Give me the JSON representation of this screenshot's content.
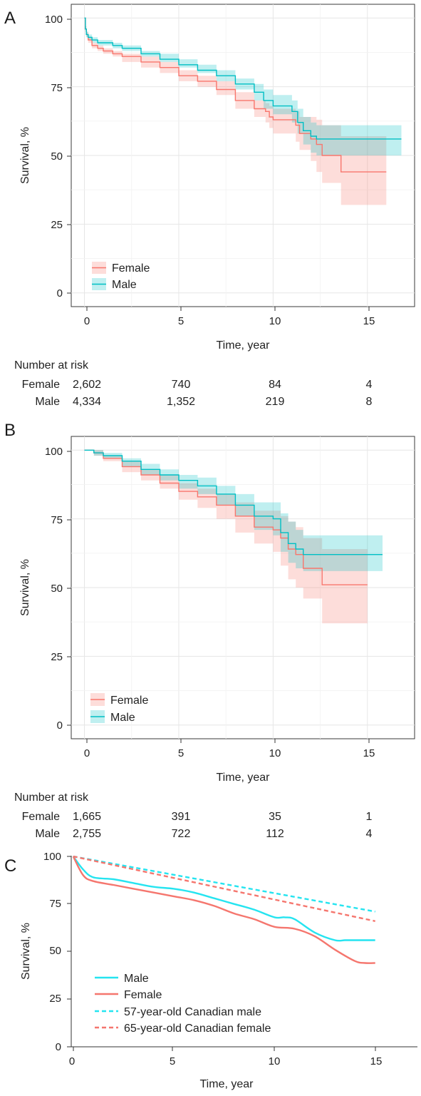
{
  "chart_data": [
    {
      "panel": "A",
      "type": "line",
      "xlabel": "Time, year",
      "ylabel": "Survival, %",
      "xlim": [
        -0.7,
        17.5
      ],
      "ylim": [
        -5,
        105
      ],
      "xticks": [
        0,
        5,
        10,
        15
      ],
      "yticks": [
        0,
        25,
        50,
        75,
        100
      ],
      "grid": true,
      "legend_position": "bottom-left",
      "risk_table": {
        "title": "Number at risk",
        "times": [
          0,
          5,
          10,
          15
        ],
        "rows": [
          {
            "label": "Female",
            "values": [
              "2,602",
              "740",
              "84",
              "4"
            ]
          },
          {
            "label": "Male",
            "values": [
              "4,334",
              "1,352",
              "219",
              "8"
            ]
          }
        ]
      },
      "series": [
        {
          "name": "Female",
          "color": "#f8766d",
          "x": [
            0,
            0.05,
            0.1,
            0.2,
            0.4,
            0.7,
            1.0,
            1.5,
            2,
            3,
            4,
            5,
            6,
            7,
            8,
            9,
            9.6,
            9.8,
            10.0,
            11.2,
            11.4,
            12.0,
            12.3,
            12.6,
            13.6,
            16.0
          ],
          "y": [
            100,
            96,
            94,
            92,
            90,
            89,
            88,
            87,
            86,
            84,
            82,
            79,
            77,
            74,
            70,
            67,
            66,
            64,
            63,
            61,
            58,
            56,
            54,
            50,
            44,
            44
          ],
          "lower": [
            100,
            95,
            93,
            91,
            89,
            88,
            87,
            86,
            84,
            82,
            80,
            77,
            75,
            72,
            67,
            64,
            62,
            60,
            58,
            55,
            52,
            48,
            44,
            40,
            32,
            32
          ],
          "upper": [
            100,
            97,
            95,
            93,
            91,
            90,
            89,
            88,
            87,
            86,
            84,
            81,
            79,
            77,
            73,
            70,
            69,
            68,
            67,
            66,
            64,
            64,
            63,
            61,
            57,
            57
          ]
        },
        {
          "name": "Male",
          "color": "#00bfc4",
          "x": [
            0,
            0.05,
            0.1,
            0.2,
            0.4,
            0.7,
            1.0,
            1.5,
            2,
            3,
            4,
            5,
            6,
            7,
            8,
            9,
            9.5,
            10.0,
            11.0,
            11.3,
            11.6,
            12.0,
            12.3,
            16.8
          ],
          "y": [
            100,
            96,
            94,
            93,
            92,
            91,
            91,
            90,
            89,
            87,
            85,
            83,
            81,
            79,
            76,
            73,
            70,
            68,
            66,
            62,
            59,
            57,
            56,
            56
          ],
          "lower": [
            100,
            95,
            93,
            92,
            91,
            90,
            90,
            89,
            88,
            86,
            84,
            82,
            80,
            77,
            74,
            70,
            67,
            65,
            62,
            58,
            54,
            51,
            50,
            50
          ],
          "upper": [
            100,
            97,
            95,
            94,
            93,
            92,
            92,
            91,
            90,
            88,
            87,
            85,
            83,
            81,
            78,
            76,
            74,
            72,
            70,
            67,
            64,
            62,
            61,
            61
          ]
        }
      ]
    },
    {
      "panel": "B",
      "type": "line",
      "xlabel": "Time, year",
      "ylabel": "Survival, %",
      "xlim": [
        -0.7,
        17.5
      ],
      "ylim": [
        -5,
        105
      ],
      "xticks": [
        0,
        5,
        10,
        15
      ],
      "yticks": [
        0,
        25,
        50,
        75,
        100
      ],
      "grid": true,
      "legend_position": "bottom-left",
      "risk_table": {
        "title": "Number at risk",
        "times": [
          0,
          5,
          10,
          15
        ],
        "rows": [
          {
            "label": "Female",
            "values": [
              "1,665",
              "391",
              "35",
              "1"
            ]
          },
          {
            "label": "Male",
            "values": [
              "2,755",
              "722",
              "112",
              "4"
            ]
          }
        ]
      },
      "series": [
        {
          "name": "Female",
          "color": "#f8766d",
          "x": [
            0,
            0.5,
            1,
            2,
            3,
            4,
            5,
            6,
            7,
            8,
            9,
            10,
            10.4,
            10.8,
            11.2,
            11.6,
            12.6,
            15.0
          ],
          "y": [
            100,
            99,
            97,
            94,
            91,
            88,
            85,
            83,
            80,
            76,
            72,
            71,
            68,
            64,
            62,
            57,
            51,
            51
          ],
          "lower": [
            100,
            98,
            96,
            92,
            89,
            86,
            82,
            79,
            75,
            70,
            66,
            63,
            58,
            53,
            50,
            46,
            37,
            37
          ],
          "upper": [
            100,
            100,
            98,
            96,
            93,
            91,
            88,
            86,
            84,
            81,
            78,
            78,
            76,
            74,
            72,
            68,
            64,
            64
          ]
        },
        {
          "name": "Male",
          "color": "#00bfc4",
          "x": [
            0,
            0.5,
            1,
            2,
            3,
            4,
            5,
            6,
            7,
            8,
            9,
            10,
            10.4,
            10.8,
            11.2,
            11.6,
            15.8
          ],
          "y": [
            100,
            99,
            98,
            96,
            93,
            91,
            89,
            87,
            84,
            80,
            76,
            75,
            70,
            66,
            64,
            62,
            62
          ],
          "lower": [
            100,
            98,
            97,
            94,
            91,
            89,
            86,
            84,
            80,
            76,
            71,
            69,
            63,
            59,
            57,
            56,
            56
          ],
          "upper": [
            100,
            100,
            99,
            97,
            95,
            93,
            91,
            90,
            87,
            84,
            81,
            81,
            77,
            74,
            71,
            69,
            69
          ]
        }
      ]
    },
    {
      "panel": "C",
      "type": "line",
      "xlabel": "Time, year",
      "ylabel": "Survival, %",
      "xlim": [
        -0.1,
        17.1
      ],
      "ylim": [
        0,
        100
      ],
      "xticks": [
        0,
        5,
        10,
        15
      ],
      "yticks": [
        0,
        25,
        50,
        75,
        100
      ],
      "grid": false,
      "legend_position": "bottom-left",
      "series": [
        {
          "name": "Male",
          "color": "#25e4f0",
          "dash": false,
          "x": [
            0,
            0.5,
            1,
            2,
            3,
            4,
            5,
            6,
            7,
            8,
            9,
            10,
            10.5,
            11,
            12,
            13,
            13.5,
            14,
            15
          ],
          "y": [
            100,
            93,
            89,
            88,
            86,
            84,
            83,
            81,
            78,
            75,
            72,
            68,
            68,
            67,
            60,
            56,
            56,
            56,
            56
          ]
        },
        {
          "name": "Female",
          "color": "#f5766e",
          "dash": false,
          "x": [
            0,
            0.5,
            1,
            2,
            3,
            4,
            5,
            6,
            7,
            8,
            9,
            10,
            11,
            12,
            13,
            14,
            14.5,
            15
          ],
          "y": [
            100,
            90,
            87,
            85,
            83,
            81,
            79,
            77,
            74,
            70,
            67,
            63,
            62,
            58,
            51,
            45,
            44,
            44
          ]
        },
        {
          "name": "57-year-old Canadian male",
          "color": "#25e4f0",
          "dash": true,
          "x": [
            0,
            15
          ],
          "y": [
            100,
            71
          ]
        },
        {
          "name": "65-year-old Canadian female",
          "color": "#f5766e",
          "dash": true,
          "x": [
            0,
            15
          ],
          "y": [
            100,
            66
          ]
        }
      ]
    }
  ]
}
